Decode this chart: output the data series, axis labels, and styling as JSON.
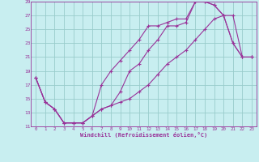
{
  "xlabel": "Windchill (Refroidissement éolien,°C)",
  "bg_color": "#c8eef0",
  "line_color": "#993399",
  "grid_color": "#99cccc",
  "xlim": [
    -0.5,
    23.5
  ],
  "ylim": [
    11,
    29
  ],
  "yticks": [
    11,
    13,
    15,
    17,
    19,
    21,
    23,
    25,
    27,
    29
  ],
  "xticks": [
    0,
    1,
    2,
    3,
    4,
    5,
    6,
    7,
    8,
    9,
    10,
    11,
    12,
    13,
    14,
    15,
    16,
    17,
    18,
    19,
    20,
    21,
    22,
    23
  ],
  "line1_x": [
    0,
    1,
    2,
    3,
    4,
    5,
    6,
    7,
    8,
    9,
    10,
    11,
    12,
    13,
    14,
    15,
    16,
    17,
    18,
    19,
    20,
    21,
    22,
    23
  ],
  "line1_y": [
    18,
    14.5,
    13.5,
    11.5,
    11.5,
    11.5,
    12.5,
    13.5,
    14,
    16,
    19,
    20,
    22,
    23.5,
    25.5,
    25.5,
    26,
    29,
    29,
    28.5,
    27,
    23,
    21,
    21
  ],
  "line2_x": [
    0,
    1,
    2,
    3,
    4,
    5,
    6,
    7,
    8,
    9,
    10,
    11,
    12,
    13,
    14,
    15,
    16,
    17,
    18,
    19,
    20,
    21,
    22,
    23
  ],
  "line2_y": [
    18,
    14.5,
    13.5,
    11.5,
    11.5,
    11.5,
    12.5,
    17,
    19,
    20.5,
    22,
    23.5,
    25.5,
    25.5,
    26,
    26.5,
    26.5,
    29,
    29,
    28.5,
    27,
    23,
    21,
    21
  ],
  "line3_x": [
    0,
    1,
    2,
    3,
    4,
    5,
    6,
    7,
    8,
    9,
    10,
    11,
    12,
    13,
    14,
    15,
    16,
    17,
    18,
    19,
    20,
    21,
    22,
    23
  ],
  "line3_y": [
    18,
    14.5,
    13.5,
    11.5,
    11.5,
    11.5,
    12.5,
    13.5,
    14,
    14.5,
    15,
    16,
    17,
    18.5,
    20,
    21,
    22,
    23.5,
    25,
    26.5,
    27,
    27,
    21,
    21
  ]
}
